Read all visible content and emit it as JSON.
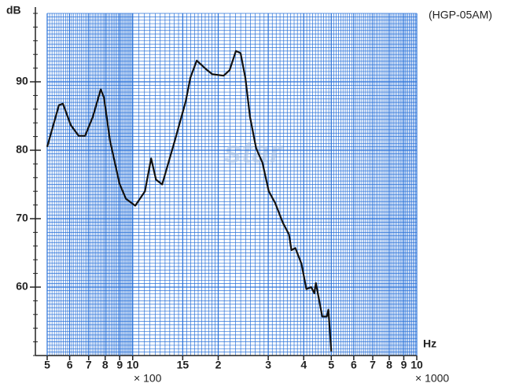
{
  "chart_data": {
    "type": "line",
    "model": "(HGP-05AM)",
    "y_label": "dB",
    "x_label": "Hz",
    "x_multiplier_low": "× 100",
    "x_multiplier_high": "× 1000",
    "watermark": "star",
    "xscale": "log",
    "grid": true,
    "grid_color": "#2a72d8",
    "color": "#111111",
    "xlim": [
      500,
      10000
    ],
    "ylim": [
      50,
      100
    ],
    "xticks": [
      {
        "value": 500,
        "label": "5"
      },
      {
        "value": 600,
        "label": "6"
      },
      {
        "value": 700,
        "label": "7"
      },
      {
        "value": 800,
        "label": "8"
      },
      {
        "value": 900,
        "label": "9"
      },
      {
        "value": 1000,
        "label": "10"
      },
      {
        "value": 1500,
        "label": "15"
      },
      {
        "value": 2000,
        "label": "2"
      },
      {
        "value": 3000,
        "label": "3"
      },
      {
        "value": 4000,
        "label": "4"
      },
      {
        "value": 5000,
        "label": "5"
      },
      {
        "value": 6000,
        "label": "6"
      },
      {
        "value": 7000,
        "label": "7"
      },
      {
        "value": 8000,
        "label": "8"
      },
      {
        "value": 9000,
        "label": "9"
      },
      {
        "value": 10000,
        "label": "10"
      }
    ],
    "yticks": [
      60,
      70,
      80,
      90
    ],
    "x": [
      500,
      550,
      568,
      605,
      645,
      680,
      724,
      772,
      792,
      832,
      899,
      947,
      1021,
      1104,
      1161,
      1208,
      1270,
      1407,
      1536,
      1596,
      1681,
      1806,
      1907,
      2090,
      2194,
      2308,
      2397,
      2492,
      2588,
      2720,
      2862,
      3014,
      3173,
      3378,
      3550,
      3620,
      3738,
      3929,
      4087,
      4249,
      4359,
      4415,
      4647,
      4824,
      4886,
      5003
    ],
    "values": [
      80.5,
      86.6,
      86.8,
      83.7,
      82.1,
      82.1,
      84.9,
      88.9,
      87.7,
      81.4,
      75.1,
      72.9,
      71.9,
      74,
      78.8,
      75.7,
      75,
      81.4,
      87.1,
      90.6,
      93.1,
      91.9,
      91.1,
      90.9,
      91.7,
      94.5,
      94.2,
      90.6,
      84.9,
      80.3,
      78.2,
      74,
      72.3,
      69.4,
      67.7,
      65.4,
      65.7,
      63.4,
      59.7,
      60,
      59.1,
      60.6,
      55.7,
      55.7,
      56.7,
      50.6
    ]
  }
}
